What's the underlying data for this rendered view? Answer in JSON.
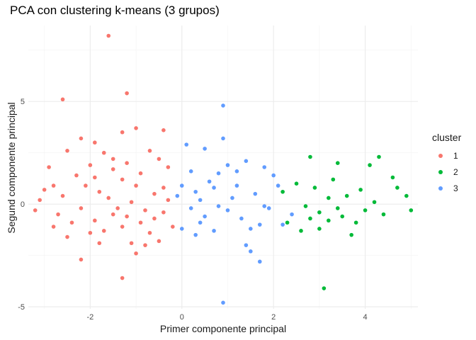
{
  "chart_data": {
    "type": "scatter",
    "title": "PCA con clustering k-means (3 grupos)",
    "xlabel": "Primer componente principal",
    "ylabel": "Segund componente principal",
    "xlim": [
      -3.35,
      5.15
    ],
    "ylim": [
      -5.1,
      8.7
    ],
    "x_ticks": [
      -2,
      0,
      2,
      4
    ],
    "y_ticks": [
      -5,
      0,
      5
    ],
    "x_tick_labels": [
      "-2",
      "0",
      "2",
      "4"
    ],
    "y_tick_labels": [
      "-5",
      "0",
      "5"
    ],
    "grid": true,
    "legend": {
      "title": "cluster",
      "position": "right",
      "entries": [
        {
          "label": "1",
          "color": "#F8766D"
        },
        {
          "label": "2",
          "color": "#00BA38"
        },
        {
          "label": "3",
          "color": "#619CFF"
        }
      ]
    },
    "series": [
      {
        "name": "1",
        "color": "#F8766D",
        "points": [
          [
            -1.6,
            8.2
          ],
          [
            -2.6,
            5.1
          ],
          [
            -1.2,
            5.4
          ],
          [
            -3.0,
            0.7
          ],
          [
            -2.8,
            -1.1
          ],
          [
            -3.1,
            0.2
          ],
          [
            -2.2,
            3.2
          ],
          [
            -1.9,
            3.0
          ],
          [
            -1.3,
            3.5
          ],
          [
            -1.0,
            3.7
          ],
          [
            -0.4,
            3.6
          ],
          [
            -2.5,
            2.6
          ],
          [
            -2.9,
            1.8
          ],
          [
            -3.2,
            -0.3
          ],
          [
            -1.8,
            -1.9
          ],
          [
            -2.2,
            -2.7
          ],
          [
            -1.3,
            -3.6
          ],
          [
            -0.8,
            -2.0
          ],
          [
            -1.7,
            -1.3
          ],
          [
            -2.0,
            1.9
          ],
          [
            -1.5,
            2.2
          ],
          [
            -0.7,
            2.6
          ],
          [
            -0.3,
            1.8
          ],
          [
            -0.4,
            0.8
          ],
          [
            -2.4,
            -0.9
          ],
          [
            -2.6,
            0.4
          ],
          [
            -2.7,
            -0.5
          ],
          [
            -2.1,
            0.9
          ],
          [
            -1.9,
            -0.8
          ],
          [
            -0.2,
            -1.1
          ],
          [
            -0.5,
            -1.8
          ],
          [
            -1.1,
            -1.9
          ],
          [
            -1.3,
            1.2
          ],
          [
            -0.9,
            1.5
          ],
          [
            -2.3,
            1.4
          ],
          [
            -1.6,
            0.3
          ],
          [
            -1.1,
            0.1
          ],
          [
            -0.8,
            -0.3
          ],
          [
            -1.2,
            -0.6
          ],
          [
            -0.6,
            0.5
          ],
          [
            -1.4,
            -0.2
          ],
          [
            -0.9,
            -0.9
          ],
          [
            -1.8,
            0.6
          ],
          [
            -2.2,
            -0.2
          ],
          [
            -1.0,
            0.9
          ],
          [
            -0.4,
            -0.4
          ],
          [
            -1.5,
            1.7
          ],
          [
            -0.7,
            -1.4
          ],
          [
            -1.3,
            -1.1
          ],
          [
            -2.0,
            -1.4
          ],
          [
            -1.7,
            2.5
          ],
          [
            -0.5,
            2.2
          ],
          [
            -2.8,
            0.9
          ],
          [
            -2.5,
            -1.6
          ],
          [
            -1.0,
            -2.4
          ],
          [
            -0.3,
            0.2
          ],
          [
            -1.9,
            1.3
          ],
          [
            -1.2,
            2.0
          ],
          [
            -0.6,
            -0.7
          ],
          [
            -1.5,
            -0.5
          ]
        ]
      },
      {
        "name": "2",
        "color": "#00BA38",
        "points": [
          [
            3.1,
            -4.1
          ],
          [
            2.8,
            2.3
          ],
          [
            3.4,
            2.0
          ],
          [
            4.3,
            2.3
          ],
          [
            4.1,
            1.9
          ],
          [
            4.6,
            1.3
          ],
          [
            4.9,
            0.4
          ],
          [
            5.0,
            -0.3
          ],
          [
            4.4,
            -0.5
          ],
          [
            3.7,
            -1.5
          ],
          [
            3.0,
            -1.2
          ],
          [
            2.6,
            -1.3
          ],
          [
            2.3,
            -0.9
          ],
          [
            2.2,
            0.6
          ],
          [
            2.5,
            1.0
          ],
          [
            2.7,
            -0.1
          ],
          [
            3.2,
            0.3
          ],
          [
            3.5,
            -0.6
          ],
          [
            3.9,
            0.7
          ],
          [
            4.2,
            0.1
          ],
          [
            3.3,
            1.2
          ],
          [
            2.9,
            0.8
          ],
          [
            3.6,
            0.4
          ],
          [
            3.0,
            -0.4
          ],
          [
            3.8,
            -0.9
          ],
          [
            4.7,
            0.8
          ],
          [
            3.4,
            -0.2
          ],
          [
            2.8,
            -0.7
          ],
          [
            4.0,
            -0.3
          ],
          [
            3.2,
            -0.8
          ]
        ]
      },
      {
        "name": "3",
        "color": "#619CFF",
        "points": [
          [
            0.9,
            -4.8
          ],
          [
            0.9,
            4.8
          ],
          [
            0.9,
            3.2
          ],
          [
            0.1,
            2.9
          ],
          [
            0.5,
            2.7
          ],
          [
            1.4,
            2.1
          ],
          [
            1.8,
            1.8
          ],
          [
            2.0,
            1.4
          ],
          [
            1.9,
            -0.2
          ],
          [
            1.7,
            -1.0
          ],
          [
            1.5,
            -2.3
          ],
          [
            1.7,
            -2.8
          ],
          [
            1.4,
            -2.0
          ],
          [
            0.7,
            -1.3
          ],
          [
            0.3,
            -1.5
          ],
          [
            0.0,
            -1.2
          ],
          [
            -0.1,
            0.4
          ],
          [
            0.2,
            1.6
          ],
          [
            0.4,
            0.2
          ],
          [
            0.7,
            0.8
          ],
          [
            1.0,
            -0.3
          ],
          [
            1.2,
            0.9
          ],
          [
            0.5,
            -0.6
          ],
          [
            1.3,
            -0.7
          ],
          [
            0.8,
            1.5
          ],
          [
            0.2,
            -0.2
          ],
          [
            1.6,
            0.5
          ],
          [
            0.6,
            1.1
          ],
          [
            1.1,
            0.3
          ],
          [
            2.4,
            -0.5
          ],
          [
            2.1,
            0.9
          ],
          [
            2.2,
            -1.0
          ],
          [
            0.0,
            0.9
          ],
          [
            0.4,
            -0.9
          ],
          [
            1.8,
            -0.1
          ],
          [
            1.0,
            1.9
          ],
          [
            0.3,
            0.6
          ],
          [
            0.8,
            -0.1
          ],
          [
            1.5,
            -1.2
          ],
          [
            1.2,
            1.6
          ]
        ]
      }
    ]
  }
}
